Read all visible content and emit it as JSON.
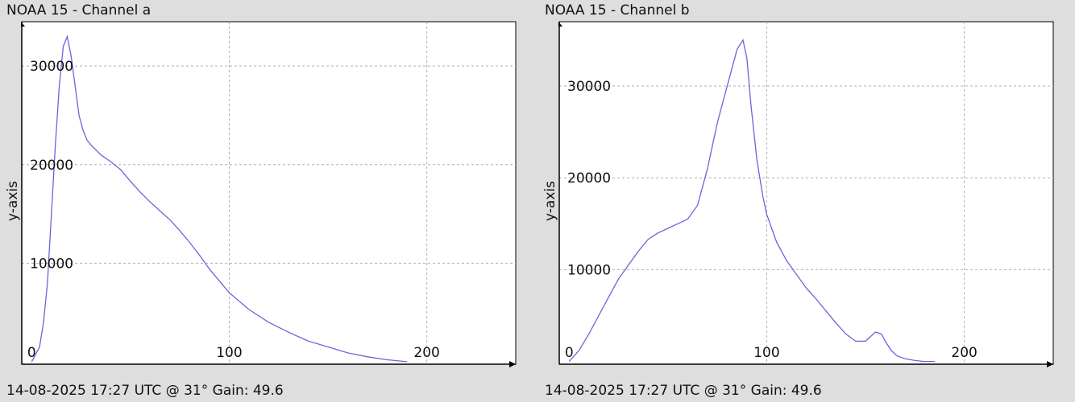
{
  "panels": [
    {
      "title": "NOAA 15 - Channel a",
      "footer": "14-08-2025 17:27 UTC @ 31° Gain: 49.6"
    },
    {
      "title": "NOAA 15 - Channel b",
      "footer": "14-08-2025 17:27 UTC @ 31° Gain: 49.6"
    }
  ],
  "colors": {
    "background": "#dedede",
    "plot_area": "#ffffff",
    "line": "#6666dd",
    "grid": "#b0b0b0",
    "axis": "#000000"
  },
  "chart_data": [
    {
      "type": "line",
      "title": "NOAA 15 - Channel a",
      "xlabel": "",
      "ylabel": "y-axis",
      "xlim": [
        -5,
        245
      ],
      "ylim": [
        -250,
        34500
      ],
      "xticks": [
        0,
        100,
        200
      ],
      "yticks": [
        10000,
        20000,
        30000
      ],
      "xtick_labels": [
        "0",
        "100",
        "200"
      ],
      "ytick_labels": [
        "10000",
        "20000",
        "30000"
      ],
      "grid": true,
      "series": [
        {
          "x": [
            0,
            4,
            6,
            8,
            10,
            12,
            14,
            16,
            18,
            20,
            22,
            24,
            26,
            28,
            30,
            35,
            40,
            45,
            50,
            55,
            60,
            65,
            70,
            75,
            80,
            85,
            90,
            95,
            100,
            110,
            120,
            130,
            140,
            150,
            160,
            170,
            180,
            190
          ],
          "y": [
            0,
            1500,
            4000,
            8000,
            15000,
            22000,
            28000,
            32000,
            33000,
            31000,
            28000,
            25000,
            23500,
            22500,
            22000,
            21000,
            20300,
            19500,
            18300,
            17200,
            16200,
            15300,
            14400,
            13300,
            12100,
            10800,
            9400,
            8200,
            7000,
            5300,
            4000,
            3000,
            2100,
            1500,
            900,
            500,
            200,
            0
          ]
        }
      ]
    },
    {
      "type": "line",
      "title": "NOAA 15 - Channel b",
      "xlabel": "",
      "ylabel": "y-axis",
      "xlim": [
        -5,
        245
      ],
      "ylim": [
        -300,
        37000
      ],
      "xticks": [
        0,
        100,
        200
      ],
      "yticks": [
        10000,
        20000,
        30000
      ],
      "xtick_labels": [
        "0",
        "100",
        "200"
      ],
      "ytick_labels": [
        "10000",
        "20000",
        "30000"
      ],
      "grid": true,
      "series": [
        {
          "x": [
            0,
            5,
            10,
            15,
            20,
            25,
            30,
            35,
            40,
            45,
            50,
            55,
            60,
            65,
            70,
            75,
            80,
            85,
            88,
            90,
            92,
            95,
            98,
            100,
            105,
            110,
            115,
            120,
            125,
            130,
            135,
            140,
            145,
            150,
            155,
            158,
            160,
            163,
            166,
            170,
            175,
            180,
            185
          ],
          "y": [
            0,
            1200,
            3000,
            5000,
            7000,
            9000,
            10500,
            12000,
            13300,
            14000,
            14500,
            15000,
            15500,
            17000,
            21000,
            26000,
            30000,
            34000,
            35000,
            33000,
            28000,
            22000,
            18000,
            16000,
            13000,
            11000,
            9500,
            8000,
            6800,
            5500,
            4200,
            3000,
            2200,
            2200,
            3200,
            3000,
            2200,
            1200,
            600,
            300,
            100,
            0,
            0
          ]
        }
      ]
    }
  ]
}
